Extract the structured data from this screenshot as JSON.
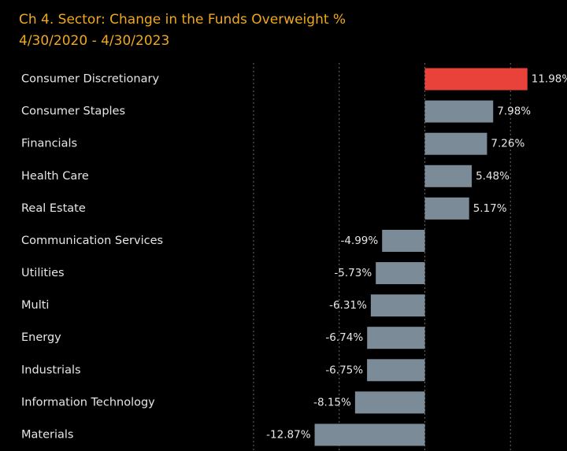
{
  "chart_data": {
    "type": "hbar",
    "title": "Ch 4.  Sector:  Change in the Funds Overweight %",
    "subtitle": "4/30/2020 - 4/30/2023",
    "categories": [
      "Consumer Discretionary",
      "Consumer Staples",
      "Financials",
      "Health Care",
      "Real Estate",
      "Communication Services",
      "Utilities",
      "Multi",
      "Energy",
      "Industrials",
      "Information Technology",
      "Materials"
    ],
    "values": [
      11.98,
      7.98,
      7.26,
      5.48,
      5.17,
      -4.99,
      -5.73,
      -6.31,
      -6.74,
      -6.75,
      -8.15,
      -12.87
    ],
    "value_labels": [
      "11.98%",
      "7.98%",
      "7.26%",
      "5.48%",
      "5.17%",
      "-4.99%",
      "-5.73%",
      "-6.31%",
      "-6.74%",
      "-6.75%",
      "-8.15%",
      "-12.87%"
    ],
    "colors": [
      "#e8423a",
      "#7b8b97",
      "#7b8b97",
      "#7b8b97",
      "#7b8b97",
      "#7b8b97",
      "#7b8b97",
      "#7b8b97",
      "#7b8b97",
      "#7b8b97",
      "#7b8b97",
      "#7b8b97"
    ],
    "xlim": [
      -20,
      16.6
    ],
    "xticks": [
      -20,
      -10,
      0,
      10
    ],
    "grid": true
  }
}
